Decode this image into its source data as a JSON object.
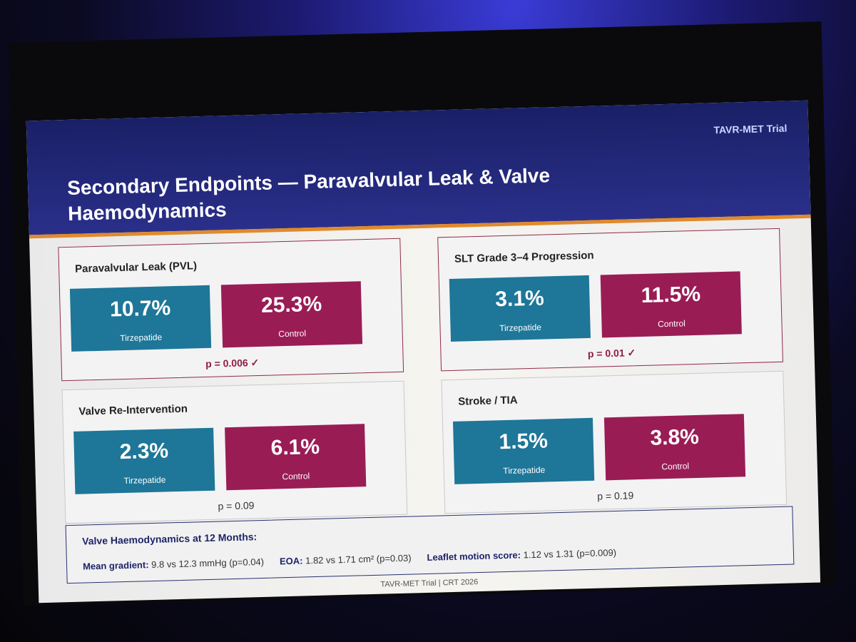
{
  "header": {
    "tag": "TAVR-MET Trial",
    "title": "Secondary Endpoints — Paravalvular Leak & Valve Haemodynamics"
  },
  "panels": [
    {
      "title": "Paravalvular Leak (PVL)",
      "treatment": {
        "value": "10.7%",
        "label": "Tirzepatide"
      },
      "control": {
        "value": "25.3%",
        "label": "Control"
      },
      "p": "p = 0.006 ✓",
      "highlight": true
    },
    {
      "title": "SLT Grade 3–4 Progression",
      "treatment": {
        "value": "3.1%",
        "label": "Tirzepatide"
      },
      "control": {
        "value": "11.5%",
        "label": "Control"
      },
      "p": "p = 0.01 ✓",
      "highlight": true
    },
    {
      "title": "Valve Re-Intervention",
      "treatment": {
        "value": "2.3%",
        "label": "Tirzepatide"
      },
      "control": {
        "value": "6.1%",
        "label": "Control"
      },
      "p": "p = 0.09",
      "highlight": false
    },
    {
      "title": "Stroke / TIA",
      "treatment": {
        "value": "1.5%",
        "label": "Tirzepatide"
      },
      "control": {
        "value": "3.8%",
        "label": "Control"
      },
      "p": "p = 0.19",
      "highlight": false
    }
  ],
  "haemodynamics": {
    "title": "Valve Haemodynamics at 12 Months:",
    "items": [
      {
        "label": "Mean gradient:",
        "text": "9.8 vs 12.3 mmHg (p=0.04)"
      },
      {
        "label": "EOA:",
        "text": "1.82 vs 1.71 cm² (p=0.03)"
      },
      {
        "label": "Leaflet motion score:",
        "text": "1.12 vs 1.31 (p=0.009)"
      }
    ]
  },
  "footer": "TAVR-MET Trial | CRT 2026"
}
